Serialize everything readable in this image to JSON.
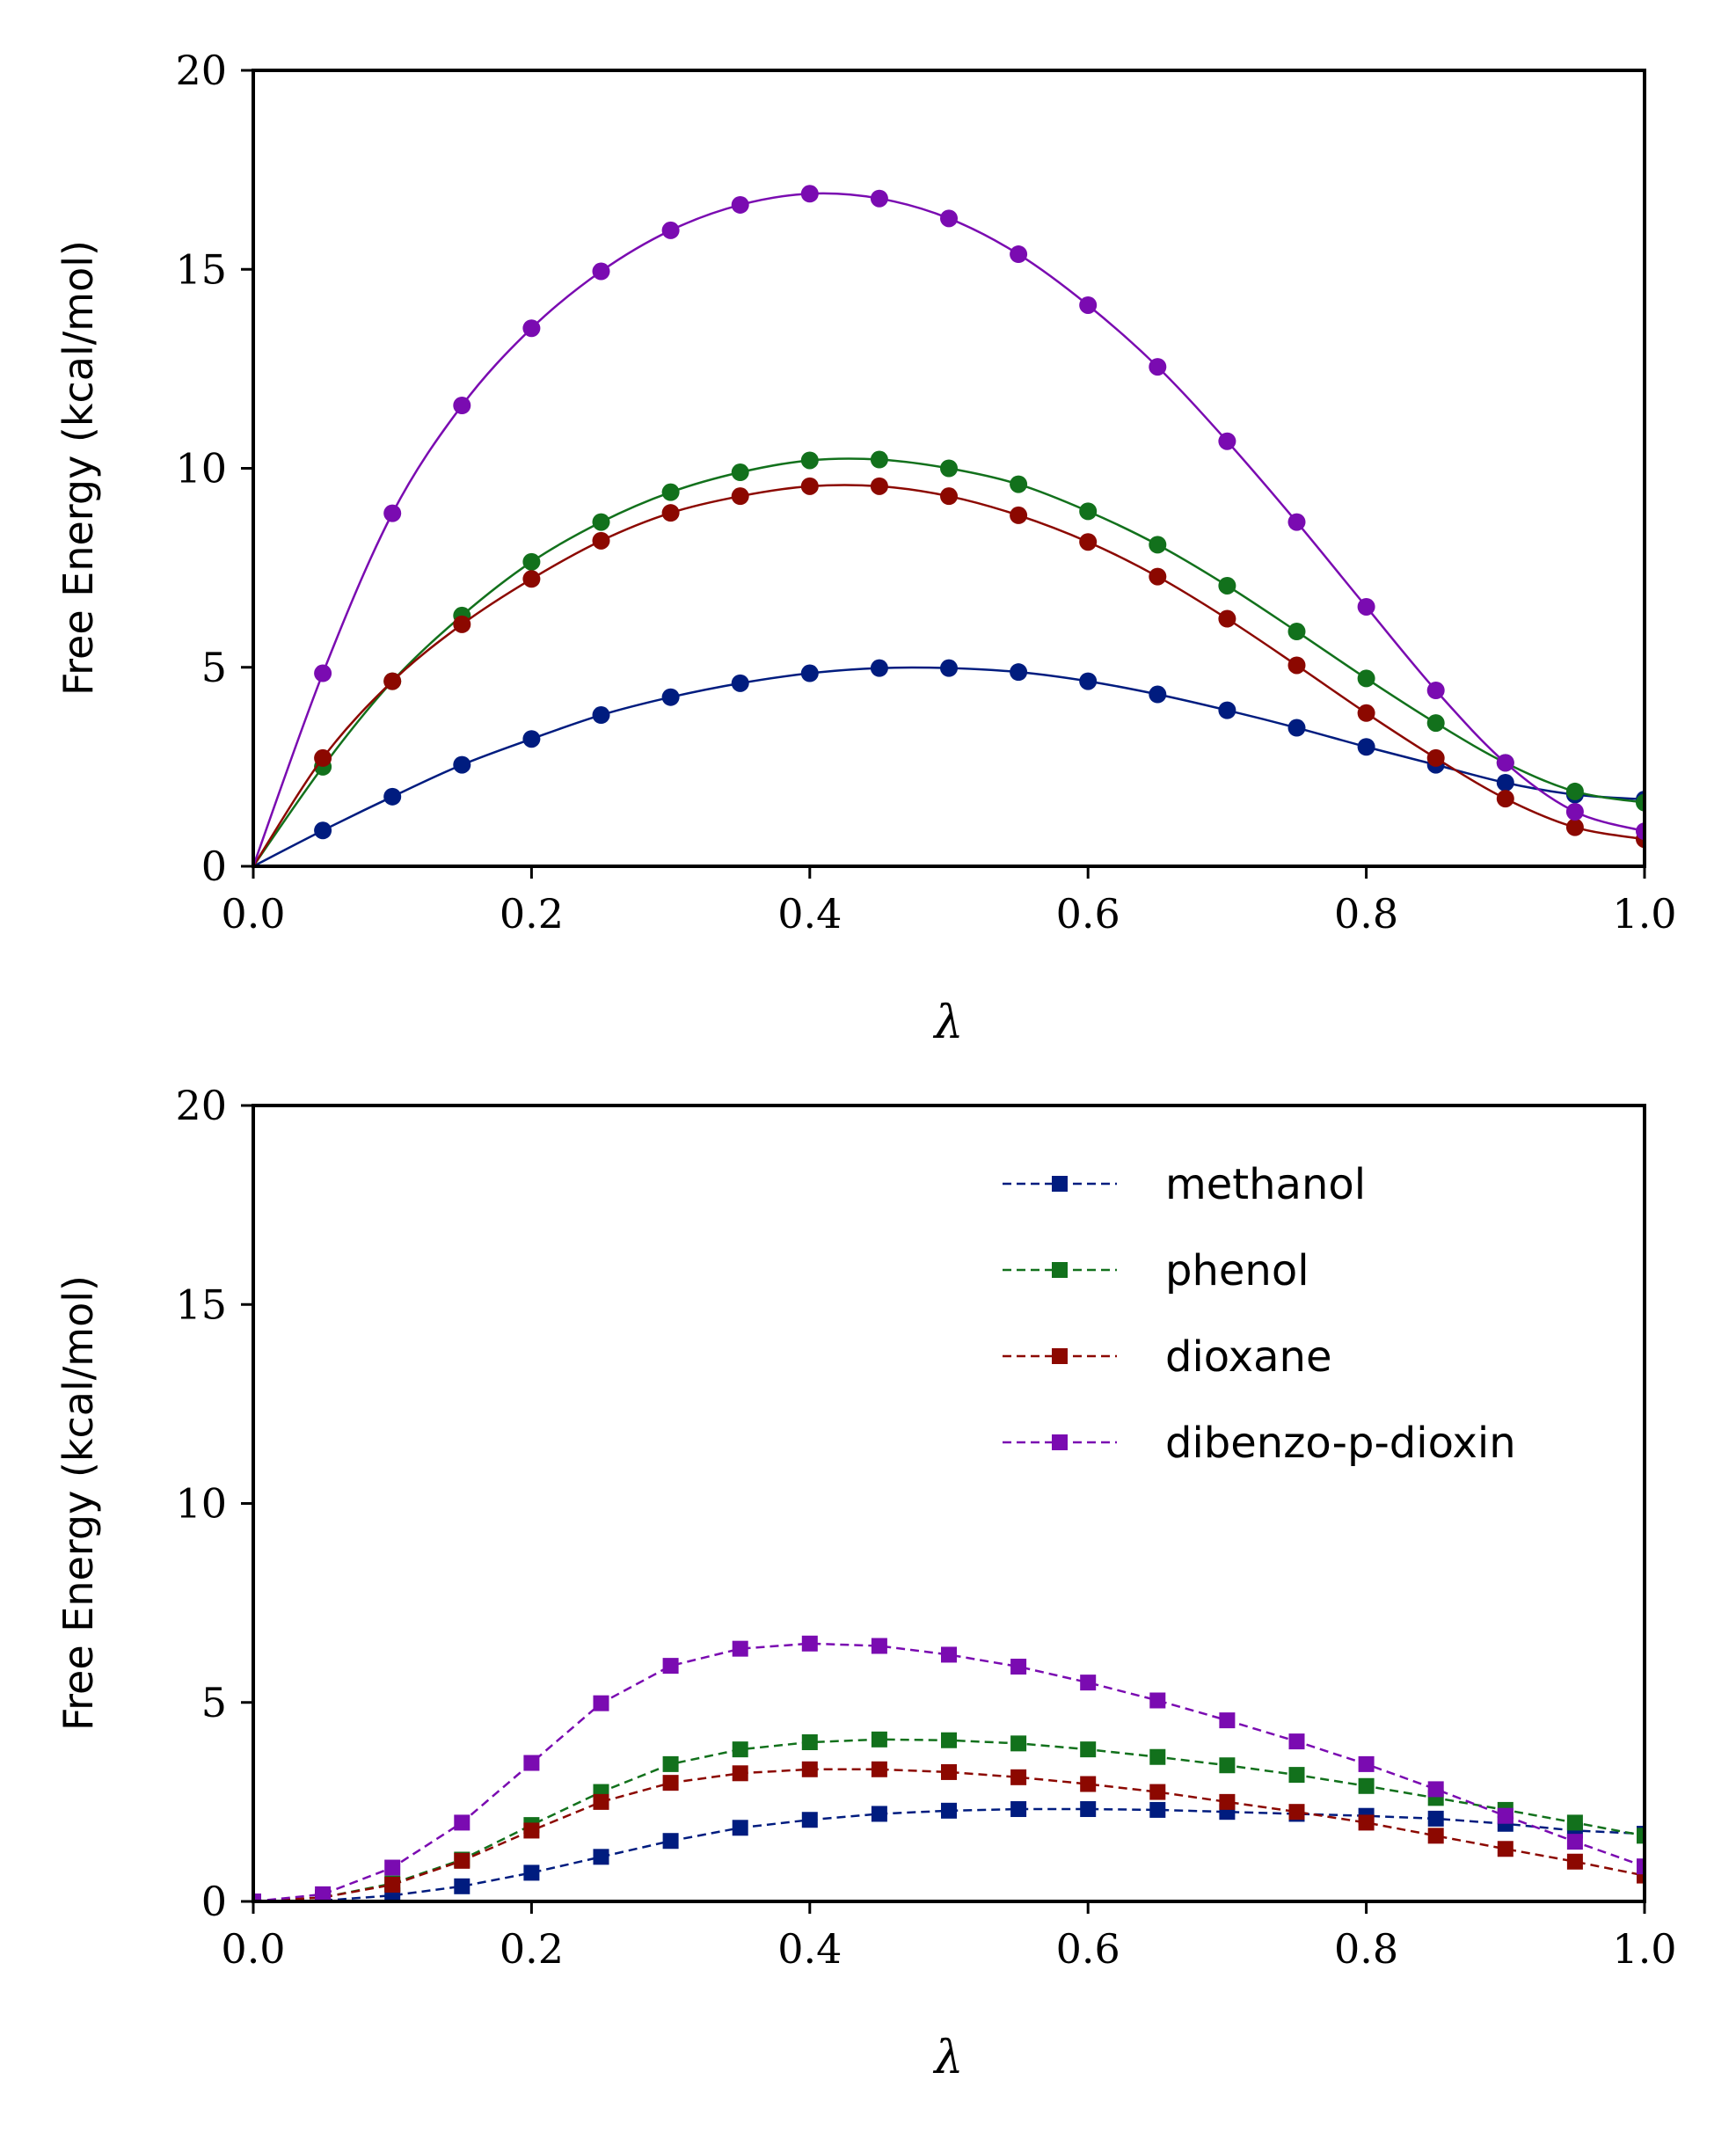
{
  "chart_data": [
    {
      "type": "line",
      "title": "",
      "xlabel": "λ",
      "ylabel": "Free Energy (kcal/mol)",
      "xlim": [
        0,
        1
      ],
      "ylim": [
        0,
        20
      ],
      "xticks": [
        "0.0",
        "0.2",
        "0.4",
        "0.6",
        "0.8",
        "1.0"
      ],
      "yticks": [
        "0",
        "5",
        "10",
        "15",
        "20"
      ],
      "marker": "circle",
      "line_style": "solid",
      "smooth": true,
      "x": [
        0,
        0.05,
        0.1,
        0.15,
        0.2,
        0.25,
        0.3,
        0.35,
        0.4,
        0.45,
        0.5,
        0.55,
        0.6,
        0.65,
        0.7,
        0.75,
        0.8,
        0.85,
        0.9,
        0.95,
        1.0
      ],
      "series": [
        {
          "name": "methanol",
          "color": "#001c7f",
          "values": [
            0,
            0.9,
            1.75,
            2.55,
            3.2,
            3.8,
            4.25,
            4.6,
            4.85,
            4.98,
            4.98,
            4.88,
            4.65,
            4.32,
            3.92,
            3.48,
            3.0,
            2.55,
            2.1,
            1.8,
            1.68
          ]
        },
        {
          "name": "phenol",
          "color": "#12711c",
          "values": [
            0,
            2.5,
            4.65,
            6.3,
            7.65,
            8.65,
            9.4,
            9.9,
            10.2,
            10.22,
            10.0,
            9.6,
            8.92,
            8.08,
            7.05,
            5.9,
            4.72,
            3.6,
            2.6,
            1.88,
            1.6
          ]
        },
        {
          "name": "dioxane",
          "color": "#8c0800",
          "values": [
            0,
            2.72,
            4.65,
            6.08,
            7.22,
            8.18,
            8.88,
            9.3,
            9.55,
            9.55,
            9.3,
            8.82,
            8.15,
            7.28,
            6.22,
            5.05,
            3.85,
            2.72,
            1.7,
            0.98,
            0.68
          ]
        },
        {
          "name": "dibenzo-p-dioxin",
          "color": "#7a0bb1",
          "values": [
            0,
            4.85,
            8.87,
            11.58,
            13.52,
            14.95,
            15.98,
            16.62,
            16.9,
            16.78,
            16.28,
            15.38,
            14.1,
            12.55,
            10.68,
            8.65,
            6.52,
            4.42,
            2.6,
            1.37,
            0.88
          ]
        }
      ]
    },
    {
      "type": "line",
      "title": "",
      "xlabel": "λ",
      "ylabel": "Free Energy (kcal/mol)",
      "xlim": [
        0,
        1
      ],
      "ylim": [
        0,
        20
      ],
      "xticks": [
        "0.0",
        "0.2",
        "0.4",
        "0.6",
        "0.8",
        "1.0"
      ],
      "yticks": [
        "0",
        "5",
        "10",
        "15",
        "20"
      ],
      "marker": "square",
      "line_style": "dashed",
      "smooth": false,
      "legend": "top-right",
      "x": [
        0,
        0.05,
        0.1,
        0.15,
        0.2,
        0.25,
        0.3,
        0.35,
        0.4,
        0.45,
        0.5,
        0.55,
        0.6,
        0.65,
        0.7,
        0.75,
        0.8,
        0.85,
        0.9,
        0.95,
        1.0
      ],
      "series": [
        {
          "name": "methanol",
          "color": "#001c7f",
          "values": [
            0,
            0.02,
            0.15,
            0.38,
            0.72,
            1.12,
            1.52,
            1.85,
            2.05,
            2.2,
            2.28,
            2.32,
            2.32,
            2.3,
            2.25,
            2.2,
            2.15,
            2.08,
            1.95,
            1.78,
            1.7
          ]
        },
        {
          "name": "phenol",
          "color": "#12711c",
          "values": [
            0,
            0.1,
            0.45,
            1.05,
            1.92,
            2.75,
            3.45,
            3.82,
            4.0,
            4.07,
            4.05,
            3.97,
            3.82,
            3.63,
            3.42,
            3.18,
            2.9,
            2.6,
            2.3,
            1.98,
            1.65
          ]
        },
        {
          "name": "dioxane",
          "color": "#8c0800",
          "values": [
            0,
            0.1,
            0.42,
            1.02,
            1.78,
            2.5,
            2.98,
            3.22,
            3.32,
            3.32,
            3.25,
            3.12,
            2.95,
            2.75,
            2.5,
            2.25,
            1.98,
            1.65,
            1.32,
            1.0,
            0.65
          ]
        },
        {
          "name": "dibenzo-p-dioxin",
          "color": "#7a0bb1",
          "values": [
            0,
            0.18,
            0.85,
            1.98,
            3.48,
            4.98,
            5.92,
            6.35,
            6.48,
            6.42,
            6.2,
            5.9,
            5.5,
            5.05,
            4.55,
            4.02,
            3.45,
            2.82,
            2.15,
            1.5,
            0.88
          ]
        }
      ]
    }
  ]
}
